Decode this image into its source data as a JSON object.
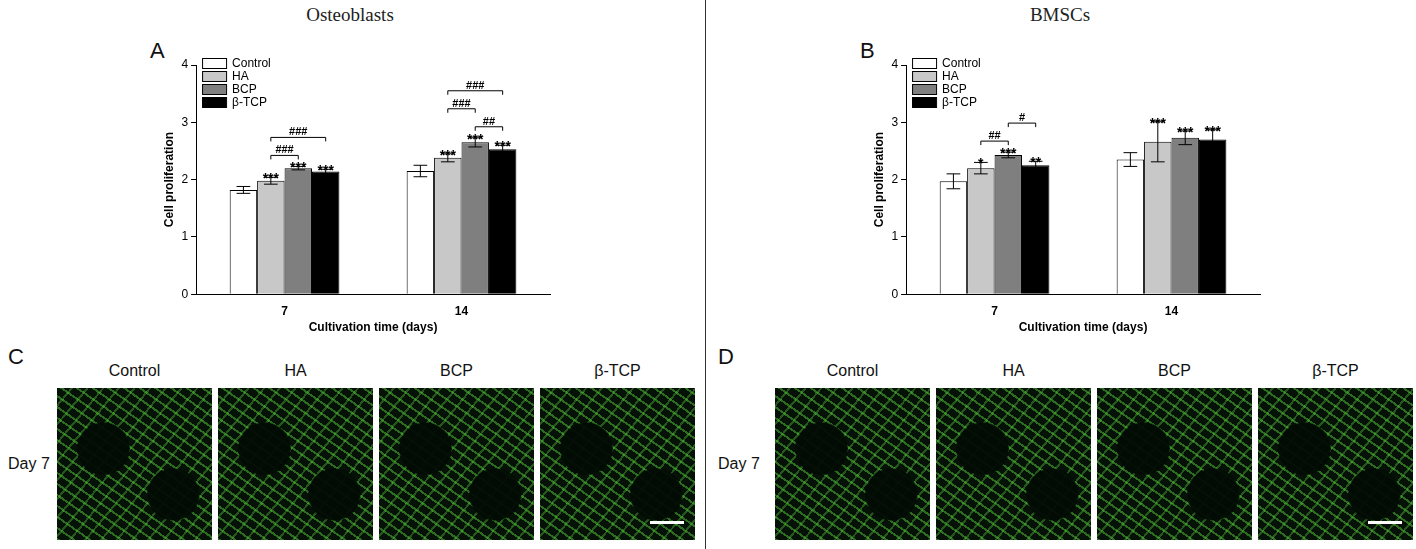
{
  "chart_data": [
    {
      "panel": "A",
      "header": "Osteoblasts",
      "type": "bar",
      "x_label": "Cultivation time (days)",
      "y_label": "Cell proliferation",
      "categories": [
        "7",
        "14"
      ],
      "series": [
        {
          "name": "Control",
          "color": "#ffffff",
          "values": [
            1.82,
            2.15
          ],
          "errors": [
            0.06,
            0.1
          ]
        },
        {
          "name": "HA",
          "color": "#c8c8c8",
          "values": [
            1.98,
            2.38
          ],
          "errors": [
            0.06,
            0.07
          ],
          "significance": [
            "***",
            "***"
          ]
        },
        {
          "name": "BCP",
          "color": "#7f7f7f",
          "values": [
            2.2,
            2.65
          ],
          "errors": [
            0.03,
            0.08
          ],
          "significance": [
            "***",
            "***"
          ]
        },
        {
          "name": "β-TCP",
          "color": "#000000",
          "values": [
            2.14,
            2.53
          ],
          "errors": [
            0.04,
            0.07
          ],
          "significance": [
            "***",
            "***"
          ]
        }
      ],
      "brackets": [
        {
          "category": "7",
          "from": "HA",
          "to": "BCP",
          "label": "###"
        },
        {
          "category": "7",
          "from": "HA",
          "to": "β-TCP",
          "label": "###"
        },
        {
          "category": "14",
          "from": "BCP",
          "to": "β-TCP",
          "label": "##"
        },
        {
          "category": "14",
          "from": "HA",
          "to": "BCP",
          "label": "###"
        },
        {
          "category": "14",
          "from": "HA",
          "to": "β-TCP",
          "label": "###"
        }
      ],
      "ylim": [
        0,
        4
      ],
      "yticks": [
        0,
        1,
        2,
        3,
        4
      ],
      "grid": false,
      "legend": "upper left"
    },
    {
      "panel": "B",
      "header": "BMSCs",
      "type": "bar",
      "x_label": "Cultivation time (days)",
      "y_label": "Cell proliferation",
      "categories": [
        "7",
        "14"
      ],
      "series": [
        {
          "name": "Control",
          "color": "#ffffff",
          "values": [
            1.97,
            2.35
          ],
          "errors": [
            0.13,
            0.12
          ]
        },
        {
          "name": "HA",
          "color": "#c8c8c8",
          "values": [
            2.2,
            2.66
          ],
          "errors": [
            0.1,
            0.35
          ],
          "significance": [
            "*",
            "***"
          ]
        },
        {
          "name": "BCP",
          "color": "#7f7f7f",
          "values": [
            2.43,
            2.73
          ],
          "errors": [
            0.05,
            0.12
          ],
          "significance": [
            "***",
            "***"
          ]
        },
        {
          "name": "β-TCP",
          "color": "#000000",
          "values": [
            2.25,
            2.7
          ],
          "errors": [
            0.07,
            0.17
          ],
          "significance": [
            "**",
            "***"
          ]
        }
      ],
      "brackets": [
        {
          "category": "7",
          "from": "HA",
          "to": "BCP",
          "label": "##"
        },
        {
          "category": "7",
          "from": "BCP",
          "to": "β-TCP",
          "label": "#"
        }
      ],
      "ylim": [
        0,
        4
      ],
      "yticks": [
        0,
        1,
        2,
        3,
        4
      ],
      "grid": false,
      "legend": "upper left"
    }
  ],
  "image_panels": [
    {
      "panel": "C",
      "row_label": "Day 7",
      "columns": [
        "Control",
        "HA",
        "BCP",
        "β-TCP"
      ]
    },
    {
      "panel": "D",
      "row_label": "Day 7",
      "columns": [
        "Control",
        "HA",
        "BCP",
        "β-TCP"
      ]
    }
  ]
}
